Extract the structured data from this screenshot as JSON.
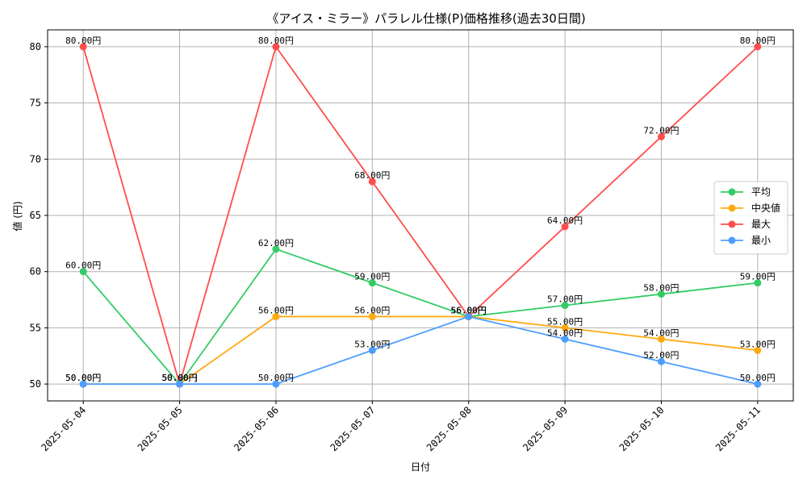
{
  "chart_data": {
    "type": "line",
    "title": "《アイス・ミラー》パラレル仕様(P)価格推移(過去30日間)",
    "xlabel": "日付",
    "ylabel": "値 (円)",
    "categories": [
      "2025-05-04",
      "2025-05-05",
      "2025-05-06",
      "2025-05-07",
      "2025-05-08",
      "2025-05-09",
      "2025-05-10",
      "2025-05-11"
    ],
    "ylim": [
      48.5,
      81.5
    ],
    "yticks": [
      50,
      55,
      60,
      65,
      70,
      75,
      80
    ],
    "grid": true,
    "legend_position": "right",
    "label_suffix": "円",
    "series": [
      {
        "name": "平均",
        "color": "#33cc66",
        "values": [
          60,
          50,
          62,
          59,
          56,
          57,
          58,
          59
        ]
      },
      {
        "name": "中央値",
        "color": "#ffaa11",
        "values": [
          50,
          50,
          56,
          56,
          56,
          55,
          54,
          53
        ]
      },
      {
        "name": "最大",
        "color": "#ff4d4d",
        "values": [
          80,
          50,
          80,
          68,
          56,
          64,
          72,
          80
        ]
      },
      {
        "name": "最小",
        "color": "#4d9dff",
        "values": [
          50,
          50,
          50,
          53,
          56,
          54,
          52,
          50
        ]
      }
    ]
  }
}
